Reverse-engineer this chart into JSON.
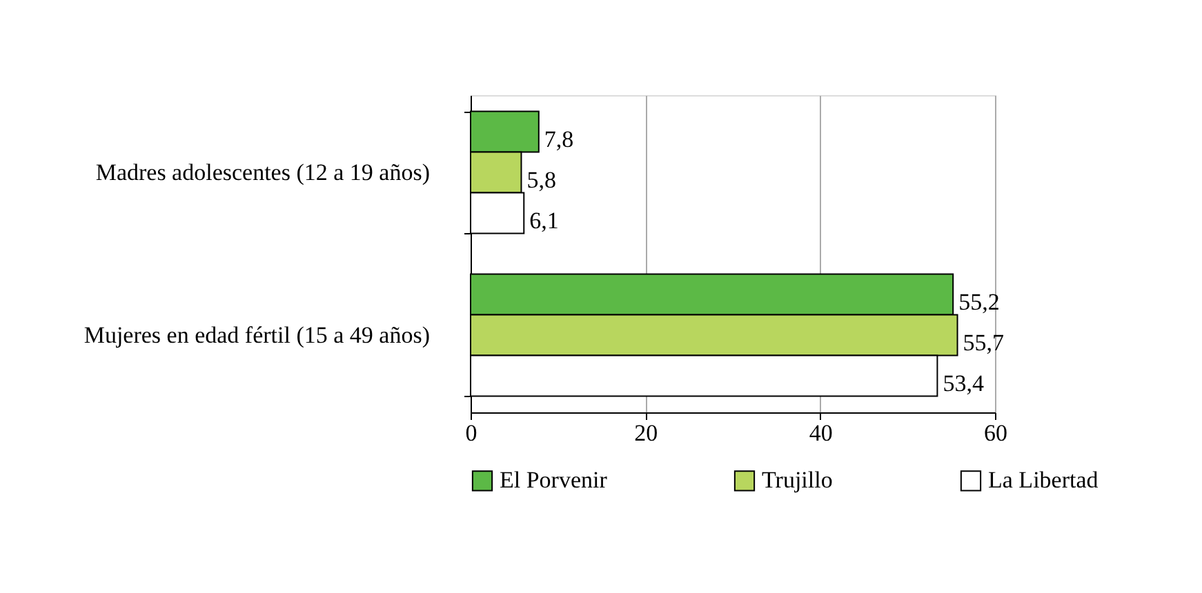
{
  "chart_data": {
    "type": "bar",
    "orientation": "horizontal",
    "categories": [
      "Madres adolescentes (12 a 19 años)",
      "Mujeres en edad fértil (15 a 49 años)"
    ],
    "series": [
      {
        "name": "El Porvenir",
        "color": "#5cb946",
        "values": [
          7.8,
          55.2
        ],
        "value_labels": [
          "7,8",
          "55,2"
        ]
      },
      {
        "name": "Trujillo",
        "color": "#b8d65e",
        "values": [
          5.8,
          55.7
        ],
        "value_labels": [
          "5,8",
          "55,7"
        ]
      },
      {
        "name": "La Libertad",
        "color": "#ffffff",
        "values": [
          6.1,
          53.4
        ],
        "value_labels": [
          "6,1",
          "53,4"
        ]
      }
    ],
    "xlim": [
      0,
      60
    ],
    "xticks": [
      0,
      20,
      40,
      60
    ],
    "grid": "x",
    "legend": "bottom"
  }
}
